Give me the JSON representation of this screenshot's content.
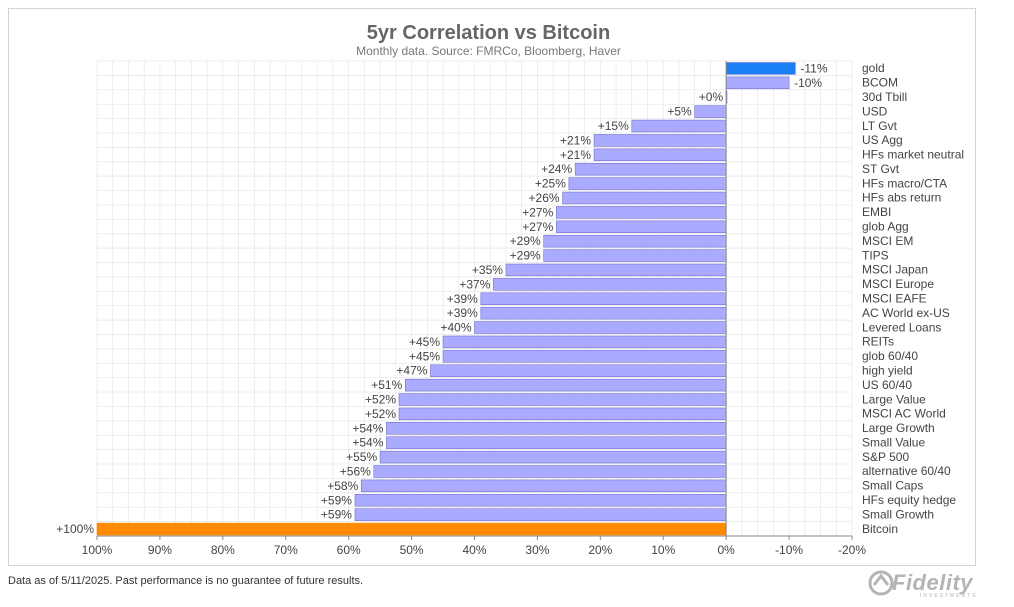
{
  "chart_data": {
    "type": "bar",
    "orientation": "horizontal",
    "title": "5yr Correlation vs Bitcoin",
    "subtitle": "Monthly data. Source: FMRCo, Bloomberg, Haver",
    "categories": [
      "gold",
      "BCOM",
      "30d Tbill",
      "USD",
      "LT Gvt",
      "US Agg",
      "HFs market neutral",
      "ST Gvt",
      "HFs macro/CTA",
      "HFs abs return",
      "EMBI",
      "glob Agg",
      "MSCI EM",
      "TIPS",
      "MSCI Japan",
      "MSCI Europe",
      "MSCI EAFE",
      "AC World ex-US",
      "Levered Loans",
      "REITs",
      "glob 60/40",
      "high yield",
      "US 60/40",
      "Large Value",
      "MSCI AC World",
      "Large Growth",
      "Small Value",
      "S&P 500",
      "alternative 60/40",
      "Small Caps",
      "HFs equity hedge",
      "Small Growth",
      "Bitcoin"
    ],
    "values": [
      -11,
      -10,
      0,
      5,
      15,
      21,
      21,
      24,
      25,
      26,
      27,
      27,
      29,
      29,
      35,
      37,
      39,
      39,
      40,
      45,
      45,
      47,
      51,
      52,
      52,
      54,
      54,
      55,
      56,
      58,
      59,
      59,
      100
    ],
    "value_labels": [
      "-11%",
      "-10%",
      "+0%",
      "+5%",
      "+15%",
      "+21%",
      "+21%",
      "+24%",
      "+25%",
      "+26%",
      "+27%",
      "+27%",
      "+29%",
      "+29%",
      "+35%",
      "+37%",
      "+39%",
      "+39%",
      "+40%",
      "+45%",
      "+45%",
      "+47%",
      "+51%",
      "+52%",
      "+52%",
      "+54%",
      "+54%",
      "+55%",
      "+56%",
      "+58%",
      "+59%",
      "+59%",
      "+100%"
    ],
    "xlim": [
      100,
      -20
    ],
    "x_ticks": [
      100,
      90,
      80,
      70,
      60,
      50,
      40,
      30,
      20,
      10,
      0,
      -10,
      -20
    ],
    "x_tick_labels": [
      "100%",
      "90%",
      "80%",
      "70%",
      "60%",
      "50%",
      "40%",
      "30%",
      "20%",
      "10%",
      "0%",
      "-10%",
      "-20%"
    ],
    "x_axis_reversed": true,
    "grid": true,
    "colors": {
      "default_bar": "#aaaaff",
      "gold_bar": "#1a7ff5",
      "bcom_bar": "#aaaaff",
      "bitcoin_bar": "#ff8a00",
      "bar_edge": "#7070d0",
      "grid": "#e6e6e6",
      "axis": "#888888",
      "title": "#666666",
      "subtitle": "#777777",
      "text": "#444444"
    }
  },
  "footnote": "Data as of 5/11/2025. Past performance is no guarantee of future results.",
  "logo": {
    "text": "Fidelity",
    "sub": "INVESTMENTS"
  }
}
